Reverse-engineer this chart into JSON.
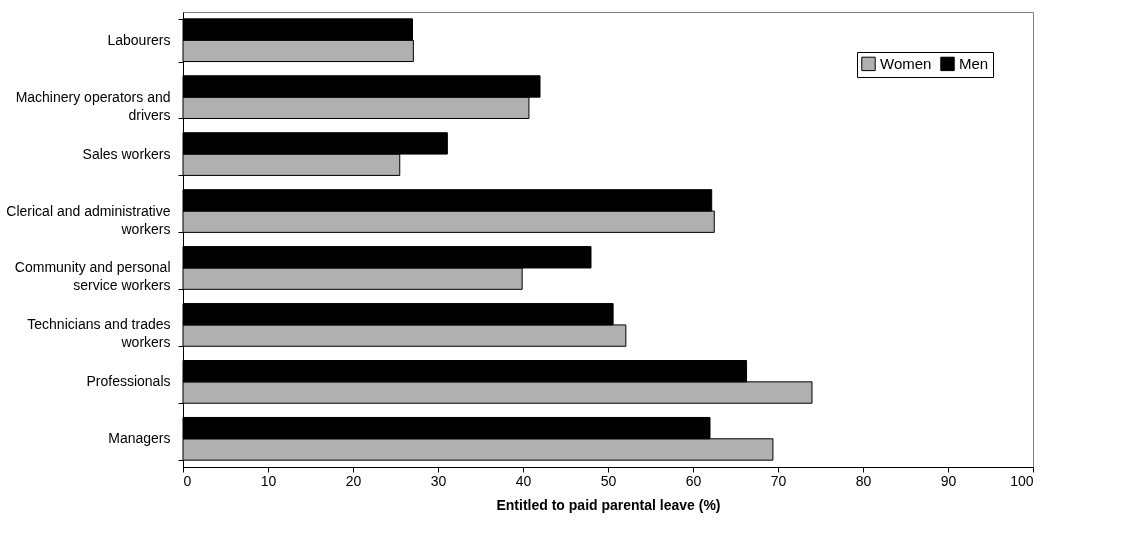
{
  "chart_data": {
    "type": "bar",
    "orientation": "horizontal",
    "xlabel": "Entitled to paid parental leave (%)",
    "categories": [
      "Labourers",
      "Machinery operators and drivers",
      "Sales workers",
      "Clerical and administrative workers",
      "Community and personal service workers",
      "Technicians and trades workers",
      "Professionals",
      "Managers"
    ],
    "series": [
      {
        "name": "Women",
        "color": "#b0b0b0",
        "values": [
          27.1,
          40.7,
          25.5,
          62.5,
          39.9,
          52.1,
          74.0,
          69.4
        ]
      },
      {
        "name": "Men",
        "color": "#000000",
        "values": [
          27.0,
          42.0,
          31.1,
          62.2,
          48.0,
          50.6,
          66.3,
          62.0
        ]
      }
    ],
    "xlim": [
      0,
      100
    ],
    "xticks": [
      0,
      10,
      20,
      30,
      40,
      50,
      60,
      70,
      80,
      90,
      100
    ],
    "grid": false,
    "legend": "top right"
  }
}
